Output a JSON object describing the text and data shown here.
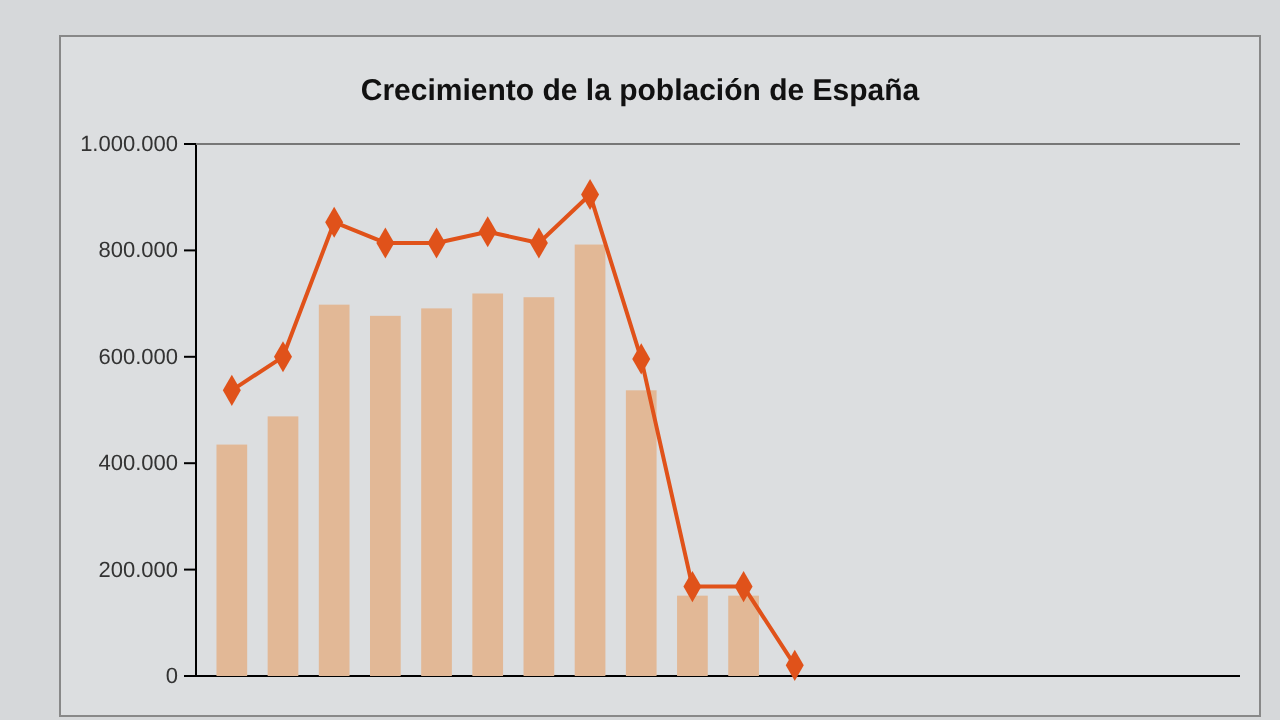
{
  "chart_data": {
    "type": "bar",
    "title": "Crecimiento de la población de España",
    "categories": [
      null,
      null,
      null,
      null,
      null,
      null,
      null,
      null,
      null,
      null,
      null,
      null,
      null,
      null,
      null,
      null,
      null,
      null,
      null,
      null
    ],
    "series": [
      {
        "color": "#e2b896",
        "values": [
          435000,
          488000,
          698000,
          677000,
          691000,
          719000,
          712000,
          811000,
          537000,
          151000,
          151000,
          null,
          null,
          null,
          null,
          null,
          null,
          null,
          null,
          null
        ]
      },
      {
        "type": "line",
        "color": "#e0521a",
        "marker": "diamond",
        "values": [
          537000,
          600000,
          853000,
          814000,
          814000,
          835000,
          814000,
          905000,
          596000,
          168000,
          168000,
          20000,
          null,
          null,
          null,
          null,
          null,
          null,
          null,
          null
        ]
      }
    ],
    "ylim": [
      0,
      1000000
    ],
    "yticks": [
      {
        "value": 0,
        "label": "0"
      },
      {
        "value": 200000,
        "label": "200.000"
      },
      {
        "value": 400000,
        "label": "400.000"
      },
      {
        "value": 600000,
        "label": "600.000"
      },
      {
        "value": 800000,
        "label": "800.000"
      },
      {
        "value": 1000000,
        "label": "1.000.000"
      }
    ],
    "grid": false
  }
}
